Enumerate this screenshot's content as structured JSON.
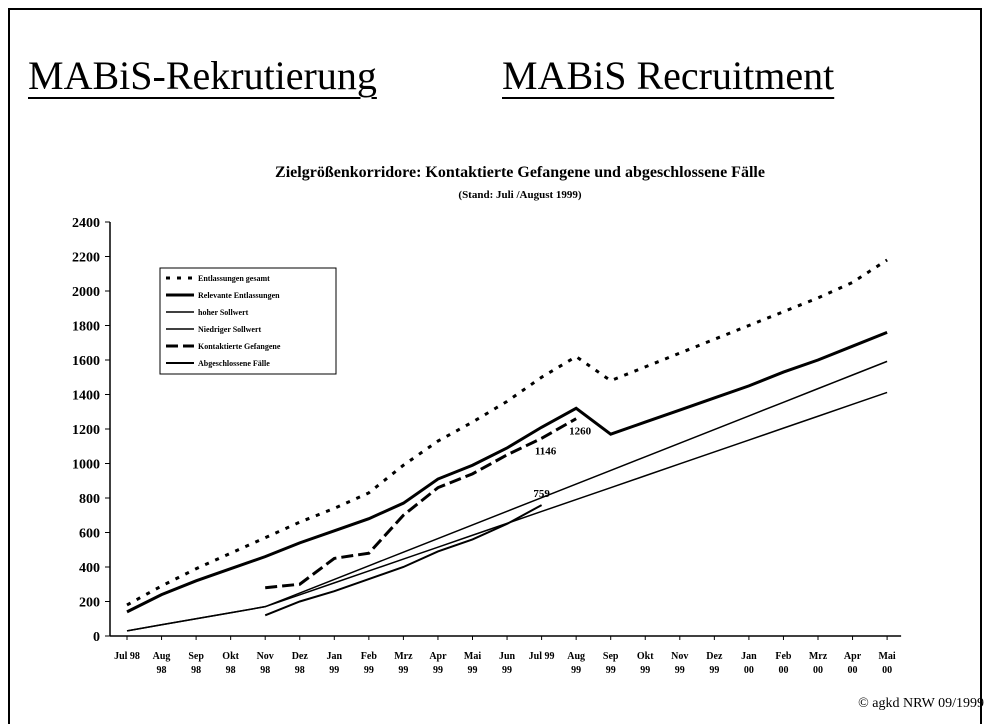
{
  "header": {
    "left": "MABiS-Rekrutierung",
    "right": "MABiS Recruitment"
  },
  "footer": "© agkd NRW 09/1999",
  "chart_data": {
    "type": "line",
    "title": "Zielgrößenkorridore: Kontaktierte Gefangene und abgeschlossene Fälle",
    "subtitle": "(Stand: Juli /August 1999)",
    "categories": [
      "Jul 98",
      "Aug 98",
      "Sep 98",
      "Okt 98",
      "Nov 98",
      "Dez 98",
      "Jan 99",
      "Feb 99",
      "Mrz 99",
      "Apr 99",
      "Mai 99",
      "Jun 99",
      "Jul 99",
      "Aug 99",
      "Sep 99",
      "Okt 99",
      "Nov 99",
      "Dez 99",
      "Jan 00",
      "Feb 00",
      "Mrz 00",
      "Apr 00",
      "Mai 00"
    ],
    "ylim": [
      0,
      2400
    ],
    "yticks": [
      0,
      200,
      400,
      600,
      800,
      1000,
      1200,
      1400,
      1600,
      1800,
      2000,
      2200,
      2400
    ],
    "legend": "upper left",
    "series": [
      {
        "name": "Entlassungen gesamt",
        "color": "#000000",
        "line_style": "dotted",
        "line_width": 3,
        "values": [
          180,
          290,
          390,
          480,
          570,
          660,
          740,
          830,
          990,
          1130,
          1240,
          1360,
          1500,
          1620,
          1480,
          1560,
          1640,
          1720,
          1800,
          1880,
          1960,
          2050,
          2180
        ]
      },
      {
        "name": "Relevante Entlassungen",
        "color": "#000000",
        "line_style": "solid",
        "line_width": 3,
        "values": [
          140,
          240,
          320,
          390,
          460,
          540,
          610,
          680,
          770,
          910,
          990,
          1090,
          1210,
          1320,
          1170,
          1240,
          1310,
          1380,
          1450,
          1530,
          1600,
          1680,
          1760
        ]
      },
      {
        "name": "hoher Sollwert",
        "color": "#000000",
        "line_style": "solid",
        "line_width": 1.5,
        "values": [
          30,
          65,
          100,
          135,
          170,
          249,
          328,
          407,
          486,
          565,
          644,
          723,
          802,
          881,
          960,
          1039,
          1118,
          1197,
          1276,
          1355,
          1434,
          1513,
          1592
        ]
      },
      {
        "name": "Niedriger Sollwert",
        "color": "#000000",
        "line_style": "solid",
        "line_width": 1.5,
        "values": [
          30,
          65,
          100,
          135,
          170,
          239,
          308,
          377,
          446,
          515,
          584,
          653,
          722,
          791,
          860,
          929,
          998,
          1067,
          1136,
          1205,
          1274,
          1343,
          1412
        ]
      },
      {
        "name": "Kontaktierte Gefangene",
        "color": "#000000",
        "line_style": "dashed",
        "line_width": 3,
        "values": [
          null,
          null,
          null,
          null,
          280,
          300,
          450,
          480,
          700,
          860,
          940,
          1050,
          1146,
          1260,
          null,
          null,
          null,
          null,
          null,
          null,
          null,
          null,
          null
        ],
        "value_labels": [
          null,
          null,
          null,
          null,
          null,
          null,
          null,
          null,
          null,
          null,
          null,
          null,
          1146,
          1260,
          null,
          null,
          null,
          null,
          null,
          null,
          null,
          null,
          null
        ]
      },
      {
        "name": "Abgeschlossene Fälle",
        "color": "#000000",
        "line_style": "solid",
        "line_width": 2,
        "values": [
          null,
          null,
          null,
          null,
          120,
          200,
          260,
          330,
          400,
          490,
          560,
          650,
          759,
          null,
          null,
          null,
          null,
          null,
          null,
          null,
          null,
          null,
          null
        ],
        "value_labels": [
          null,
          null,
          null,
          null,
          null,
          null,
          null,
          null,
          null,
          null,
          null,
          null,
          759,
          null,
          null,
          null,
          null,
          null,
          null,
          null,
          null,
          null,
          null
        ]
      }
    ]
  }
}
